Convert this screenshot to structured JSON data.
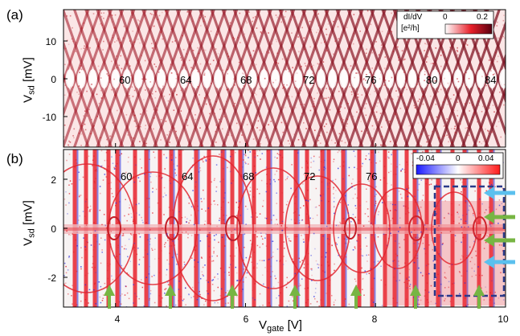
{
  "panel_a": {
    "label": "(a)",
    "y_label_main": "V",
    "y_label_sub": "sd",
    "y_label_unit": " [mV]",
    "y_ticks": [
      "10",
      "0",
      "-10"
    ],
    "peak_numbers": [
      "60",
      "64",
      "68",
      "72",
      "76",
      "80",
      "84"
    ],
    "colorbar": {
      "title_line1": "dI/dV",
      "title_line2": "[e²/h]",
      "min_label": "0",
      "max_label": "0.2",
      "colors": [
        "#ffffff",
        "#e8202a",
        "#5a0010"
      ]
    }
  },
  "panel_b": {
    "label": "(b)",
    "y_label_main": "V",
    "y_label_sub": "sd",
    "y_label_unit": " [mV]",
    "y_ticks": [
      "2",
      "0",
      "-2"
    ],
    "peak_numbers": [
      "60",
      "64",
      "68",
      "72",
      "76"
    ],
    "colorbar": {
      "min_label": "-0.04",
      "mid_label": "0",
      "max_label": "0.04",
      "colors": [
        "#1a1aff",
        "#ffffff",
        "#ff1a1a"
      ]
    },
    "arrow_colors": {
      "green": "#77b543",
      "blue": "#5bc0ee",
      "box": "#2a3a8a"
    }
  },
  "x_axis": {
    "label_main": "V",
    "label_sub": "gate",
    "label_unit": " [V]",
    "ticks": [
      "4",
      "6",
      "8",
      "10"
    ],
    "range": [
      3.2,
      10
    ]
  }
}
